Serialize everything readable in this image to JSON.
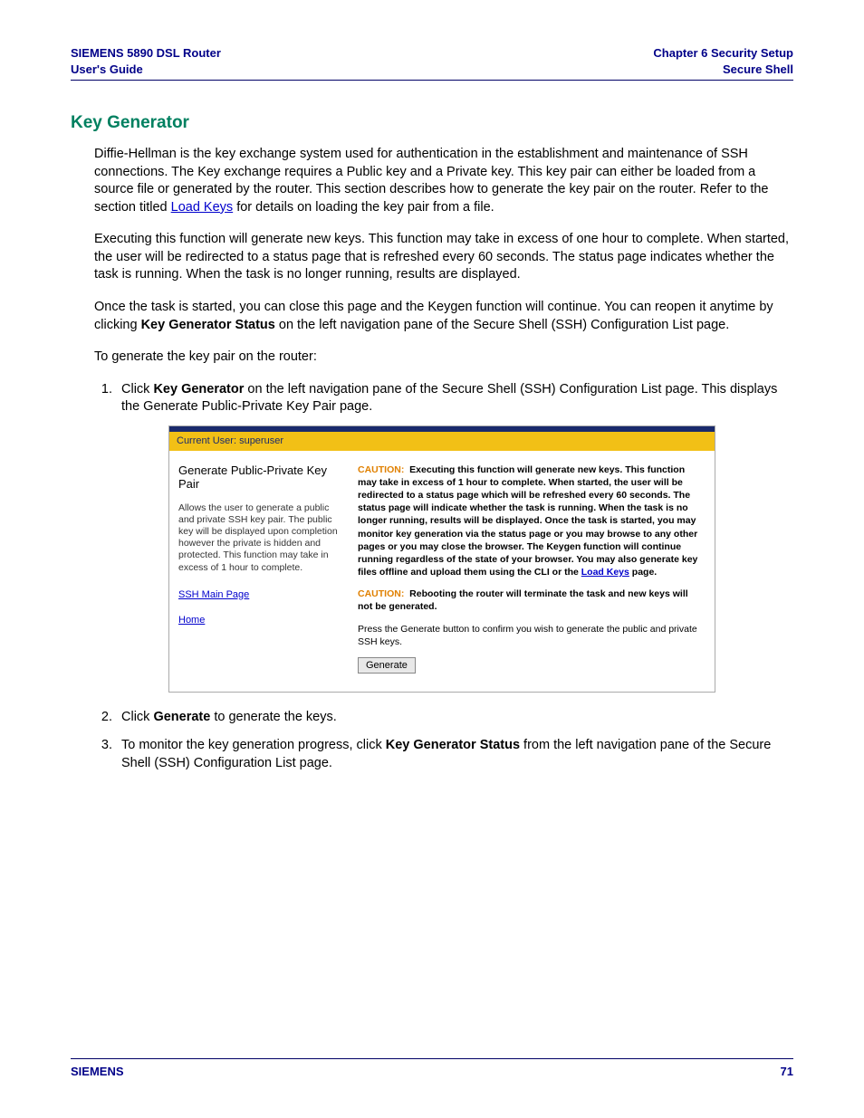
{
  "header": {
    "left_line1": "SIEMENS 5890 DSL Router",
    "left_line2": "User's Guide",
    "right_line1": "Chapter 6  Security Setup",
    "right_line2": "Secure Shell"
  },
  "section_title": "Key Generator",
  "para1_a": "Diffie-Hellman is the key exchange system used for authentication in the establishment and maintenance of SSH connections. The Key exchange requires a Public key and a Private key. This key pair can either be loaded from a source file or generated by the router. This section describes how to generate the key pair on the router. Refer to the section titled ",
  "para1_link": "Load Keys",
  "para1_b": " for details on loading the key pair from a file.",
  "para2": "Executing this function will generate new keys. This function may take in excess of one hour to complete. When started, the user will be redirected to a status page that is refreshed every 60 seconds. The status page indicates whether the task is running. When the task is no longer running, results are displayed.",
  "para3_a": "Once the task is started, you can close this page and the Keygen function will continue. You can reopen it anytime by clicking ",
  "para3_bold": "Key Generator Status",
  "para3_b": " on the left navigation pane of the Secure Shell (SSH) Configuration List page.",
  "para4": "To generate the key pair on the router:",
  "step1_a": "Click ",
  "step1_bold": "Key Generator",
  "step1_b": " on the left navigation pane of the Secure Shell (SSH) Configuration List page. This displays the Generate Public-Private Key Pair page.",
  "step2_a": "Click ",
  "step2_bold": "Generate",
  "step2_b": " to generate the keys.",
  "step3_a": "To monitor the key generation progress, click ",
  "step3_bold": "Key Generator Status",
  "step3_b": " from the left navigation pane of the Secure Shell (SSH) Configuration List page.",
  "screenshot": {
    "user_bar": "Current User: superuser",
    "left_title": "Generate Public-Private Key Pair",
    "left_desc": "Allows the user to generate a public and private SSH key pair. The public key will be displayed upon completion however the private is hidden and protected. This function may take in excess of 1 hour to complete.",
    "link1": "SSH Main Page",
    "link2": "Home",
    "caution_label": "CAUTION:",
    "caution1_a": "Executing this function will generate new keys. This function may take in excess of 1 hour to complete. When started, the user will be redirected to a status page which will be refreshed every 60 seconds. The status page will indicate whether the task is running. When the task is no longer running, results will be displayed. Once the task is started, you may monitor key generation via the status page or you may browse to any other pages or you may close the browser. The Keygen function will continue running regardless of the state of your browser. You may also generate key files offline and upload them using the CLI or the ",
    "caution1_link": "Load Keys",
    "caution1_b": " page.",
    "caution2": "Rebooting the router will terminate the task and new keys will not be generated.",
    "press_text": "Press the Generate button to confirm you wish to generate the public and private SSH keys.",
    "generate_btn": "Generate"
  },
  "footer": {
    "brand": "SIEMENS",
    "page_num": "71"
  }
}
